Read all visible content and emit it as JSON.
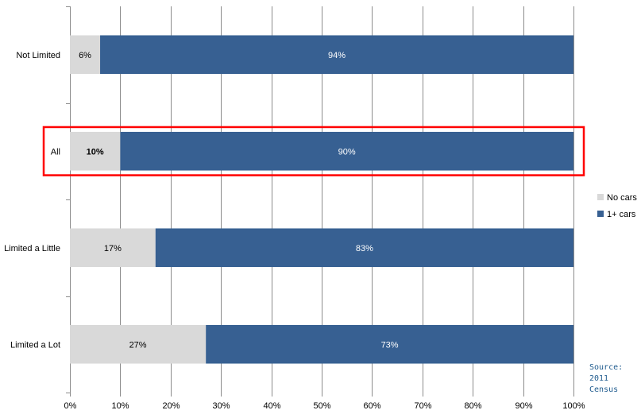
{
  "chart_data": {
    "type": "bar",
    "orientation": "horizontal",
    "stacked": true,
    "percent": true,
    "categories": [
      "Not Limited",
      "All",
      "Limited a Little",
      "Limited a Lot"
    ],
    "series": [
      {
        "name": "No cars",
        "values": [
          6,
          10,
          17,
          27
        ],
        "labels": [
          "6%",
          "10%",
          "17%",
          "27%"
        ],
        "color": "#d9d9d9"
      },
      {
        "name": "1+ cars",
        "values": [
          94,
          90,
          83,
          73
        ],
        "labels": [
          "94%",
          "90%",
          "83%",
          "73%"
        ],
        "color": "#376092"
      }
    ],
    "x_ticks": [
      "0%",
      "10%",
      "20%",
      "30%",
      "40%",
      "50%",
      "60%",
      "70%",
      "80%",
      "90%",
      "100%"
    ],
    "xlim": [
      0,
      100
    ],
    "grid": true,
    "legend_position": "right",
    "highlight_category": "All",
    "highlight_color": "#ff0000"
  },
  "source": {
    "line1": "Source:",
    "line2": "2011",
    "line3": "Census"
  }
}
